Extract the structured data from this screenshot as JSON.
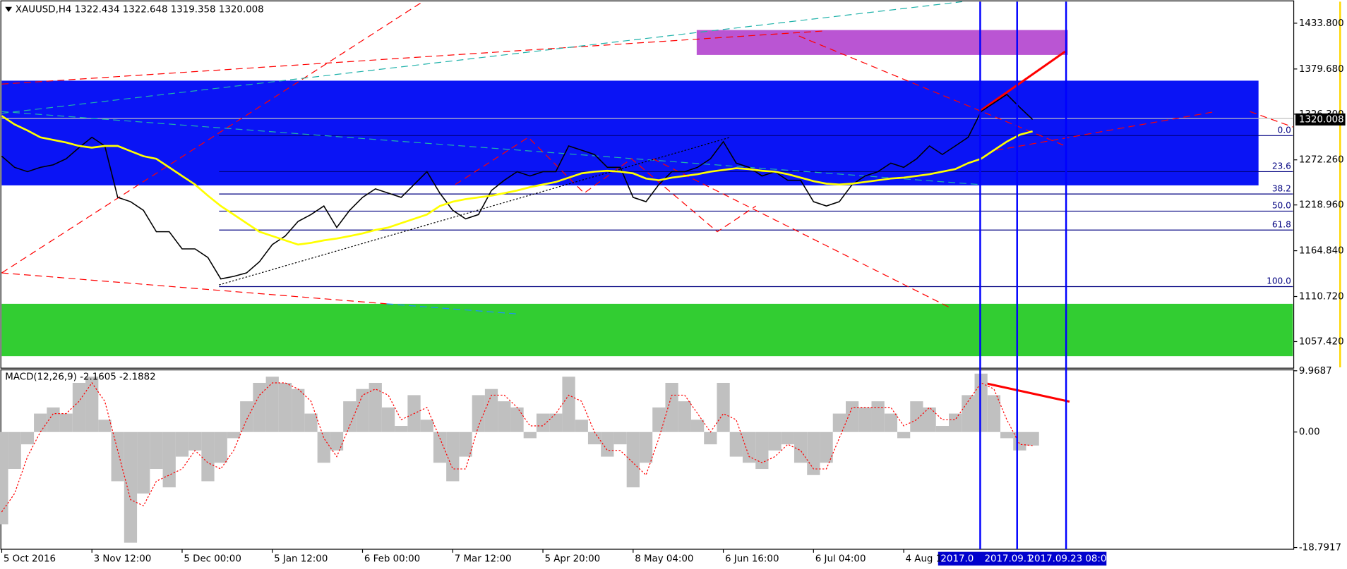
{
  "chart_data": [
    {
      "type": "price",
      "title": "XAUUSD,H4  1322.434 1322.648 1319.358 1320.008",
      "categories": [
        "5 Oct 2016",
        null,
        null,
        null,
        null,
        null,
        null,
        "3 Nov 12:00",
        null,
        null,
        null,
        null,
        null,
        null,
        "5 Dec 00:00",
        null,
        null,
        null,
        null,
        null,
        null,
        "5 Jan 12:00",
        null,
        null,
        null,
        null,
        null,
        null,
        "6 Feb 00:00",
        null,
        null,
        null,
        null,
        null,
        null,
        "7 Mar 12:00",
        null,
        null,
        null,
        null,
        null,
        null,
        "5 Apr 20:00",
        null,
        null,
        null,
        null,
        null,
        null,
        "8 May 04:00",
        null,
        null,
        null,
        null,
        null,
        null,
        "6 Jun 16:00",
        null,
        null,
        null,
        null,
        null,
        null,
        "6 Jul 04:00",
        null,
        null,
        null,
        null,
        null,
        null,
        "4 Aug 1",
        null,
        null,
        null,
        null,
        null,
        null,
        null,
        null,
        null,
        null
      ],
      "series": [
        {
          "color": "#000000",
          "values": [
            1276.6,
            1263.4,
            1258.3,
            1263.4,
            1266.4,
            1273.5,
            1286.7,
            1298.9,
            1288.7,
            1227.9,
            1222.8,
            1212.6,
            1187.3,
            1187.3,
            1167.0,
            1167.0,
            1156.8,
            1131.5,
            1134.5,
            1138.6,
            1151.8,
            1172.1,
            1182.2,
            1199.5,
            1207.6,
            1217.7,
            1192.3,
            1212.6,
            1227.9,
            1238.0,
            1232.9,
            1227.9,
            1243.1,
            1258.3,
            1232.9,
            1212.6,
            1202.5,
            1207.6,
            1236.0,
            1248.1,
            1258.3,
            1253.2,
            1258.3,
            1258.3,
            1288.7,
            1283.7,
            1278.6,
            1263.4,
            1263.4,
            1227.9,
            1222.8,
            1243.1,
            1258.3,
            1258.3,
            1263.4,
            1273.5,
            1293.8,
            1268.4,
            1263.4,
            1253.2,
            1258.3,
            1248.1,
            1248.1,
            1222.8,
            1217.7,
            1222.8,
            1243.1,
            1253.2,
            1258.3,
            1268.4,
            1263.4,
            1273.5,
            1288.7,
            1278.6,
            1288.7,
            1298.9,
            1329.3,
            1339.5,
            1349.6,
            1334.4,
            1320.0
          ]
        },
        {
          "color": "#ffff00",
          "values": [
            1324.2,
            1314.1,
            1307.0,
            1298.9,
            1295.8,
            1292.8,
            1288.7,
            1286.7,
            1288.7,
            1288.7,
            1282.6,
            1276.6,
            1273.5,
            1263.4,
            1253.2,
            1243.1,
            1229.9,
            1217.7,
            1207.6,
            1197.4,
            1187.3,
            1182.2,
            1177.1,
            1172.1,
            1174.1,
            1177.1,
            1179.2,
            1182.2,
            1185.3,
            1189.3,
            1192.3,
            1197.4,
            1202.5,
            1207.6,
            1217.7,
            1222.8,
            1225.8,
            1227.9,
            1229.9,
            1232.9,
            1236.0,
            1240.0,
            1243.1,
            1246.1,
            1251.2,
            1256.3,
            1258.3,
            1259.3,
            1258.3,
            1256.3,
            1250.2,
            1248.1,
            1251.2,
            1253.2,
            1255.3,
            1258.3,
            1260.3,
            1262.4,
            1261.3,
            1259.3,
            1258.3,
            1255.3,
            1251.2,
            1247.1,
            1244.1,
            1243.1,
            1244.1,
            1246.1,
            1248.1,
            1250.2,
            1251.2,
            1253.2,
            1255.3,
            1258.3,
            1261.3,
            1268.4,
            1273.5,
            1283.7,
            1293.8,
            1301.9,
            1306.0
          ]
        }
      ],
      "last_price": 1320.008,
      "ylim": [
        1027.0,
        1459.2
      ],
      "yticks": [
        {
          "value": 1433.8,
          "label": "1433.800"
        },
        {
          "value": 1379.68,
          "label": "1379.680"
        },
        {
          "value": 1326.3,
          "label": "1326.300"
        },
        {
          "value": 1272.26,
          "label": "1272.260"
        },
        {
          "value": 1218.96,
          "label": "1218.960"
        },
        {
          "value": 1164.84,
          "label": "1164.840"
        },
        {
          "value": 1110.72,
          "label": "1110.720"
        },
        {
          "value": 1057.42,
          "label": "1057.420"
        }
      ],
      "fib_labels": [
        "0.0",
        "23.6",
        "38.2",
        "50.0",
        "61.8",
        "100.0"
      ],
      "cursor_labels": [
        "2017.0",
        "2017.09.1",
        "2017.09.23 08:00"
      ]
    },
    {
      "type": "macd",
      "title": "MACD(12,26,9) -2.1605 -2.1882",
      "histogram": {
        "color": "#c0c0c0",
        "values": [
          -15,
          -6,
          -2,
          3,
          4,
          3,
          8,
          9,
          2,
          -8,
          -18,
          -10,
          -6,
          -9,
          -4,
          -3,
          -8,
          -5,
          -1,
          5,
          8,
          9,
          8,
          7,
          3,
          -5,
          -3,
          5,
          7,
          8,
          4,
          1,
          6,
          2,
          -5,
          -8,
          -4,
          6,
          7,
          5,
          4,
          -1,
          3,
          3,
          9,
          2,
          -2,
          -4,
          -2,
          -9,
          -5,
          4,
          8,
          5,
          2,
          -2,
          8,
          -4,
          -5,
          -6,
          -3,
          -2,
          -5,
          -7,
          -5,
          3,
          5,
          4,
          5,
          3,
          -1,
          5,
          4,
          1,
          3,
          6,
          9.5,
          6,
          -1,
          -3,
          -2.2
        ]
      },
      "signal": {
        "color": "#ff0000",
        "values": [
          -13,
          -10,
          -4,
          0,
          3,
          3,
          5,
          8,
          5,
          -3,
          -11,
          -12,
          -8,
          -7,
          -6,
          -3,
          -5,
          -6,
          -3,
          2,
          6,
          8,
          8,
          7,
          5,
          -1,
          -4,
          1,
          6,
          7,
          6,
          2,
          3,
          4,
          -1,
          -6,
          -6,
          1,
          6,
          6,
          4,
          1,
          1,
          3,
          6,
          5,
          0,
          -3,
          -3,
          -5,
          -7,
          -1,
          6,
          6,
          3,
          0,
          3,
          2,
          -4,
          -5,
          -4,
          -2,
          -3,
          -6,
          -6,
          -1,
          4,
          4,
          4,
          4,
          1,
          2,
          4,
          2,
          2,
          5,
          8,
          7,
          2,
          -2,
          -2.2
        ]
      },
      "ylim": [
        -18.7917,
        9.9687
      ],
      "yticks": [
        9.9687,
        {
          "value": 0,
          "label": "0.00"
        },
        -18.7917
      ]
    }
  ]
}
